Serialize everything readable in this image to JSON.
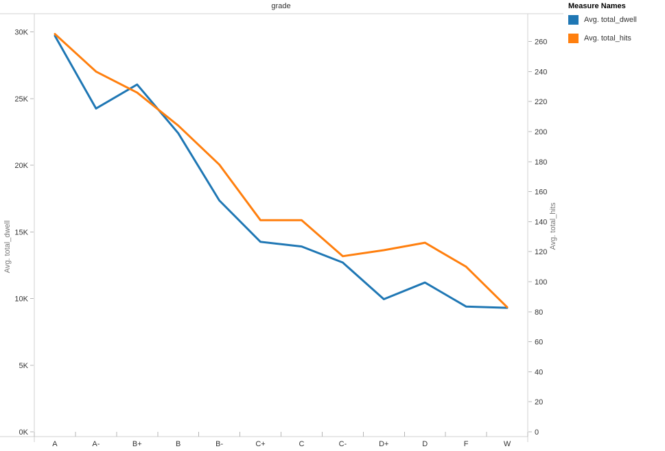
{
  "title": "grade",
  "legend": {
    "title": "Measure Names",
    "items": [
      {
        "label": "Avg. total_dwell",
        "color": "#1f77b4"
      },
      {
        "label": "Avg. total_hits",
        "color": "#ff7f0e"
      }
    ]
  },
  "left_axis": {
    "title": "Avg. total_dwell",
    "min": 0,
    "max": 30000,
    "step": 5000,
    "tick_labels": [
      "0K",
      "5K",
      "10K",
      "15K",
      "20K",
      "25K",
      "30K"
    ]
  },
  "right_axis": {
    "title": "Avg. total_hits",
    "min": 0,
    "max": 260,
    "step": 20,
    "tick_labels": [
      "0",
      "20",
      "40",
      "60",
      "80",
      "100",
      "120",
      "140",
      "160",
      "180",
      "200",
      "220",
      "240",
      "260"
    ]
  },
  "x_axis": {
    "categories": [
      "A",
      "A-",
      "B+",
      "B",
      "B-",
      "C+",
      "C",
      "C-",
      "D+",
      "D",
      "F",
      "W"
    ]
  },
  "chart_data": {
    "type": "line",
    "title": "grade",
    "categories": [
      "A",
      "A-",
      "B+",
      "B",
      "B-",
      "C+",
      "C",
      "C-",
      "D+",
      "D",
      "F",
      "W"
    ],
    "series": [
      {
        "name": "Avg. total_dwell",
        "axis": "left",
        "color": "#1f77b4",
        "values": [
          29700,
          24250,
          26050,
          22400,
          17350,
          14250,
          13900,
          12700,
          9950,
          11200,
          9400,
          9300
        ]
      },
      {
        "name": "Avg. total_hits",
        "axis": "right",
        "color": "#ff7f0e",
        "values": [
          265,
          240,
          226,
          204,
          178,
          141,
          141,
          117,
          121,
          126,
          110,
          83
        ]
      }
    ],
    "left_ylabel": "Avg. total_dwell",
    "right_ylabel": "Avg. total_hits",
    "xlabel": "grade",
    "left_ylim": [
      0,
      30000
    ],
    "right_ylim": [
      0,
      260
    ],
    "grid": false,
    "legend_position": "top-right"
  }
}
